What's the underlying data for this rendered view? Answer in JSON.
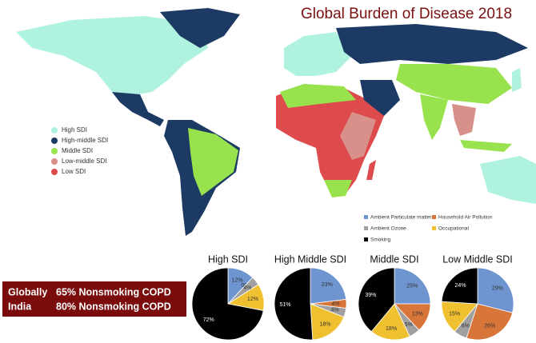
{
  "title": "Global Burden of Disease 2018",
  "map": {
    "legend": [
      {
        "label": "High SDI",
        "color": "#b0f2e0"
      },
      {
        "label": "High-middle SDI",
        "color": "#1c3a64"
      },
      {
        "label": "Middle SDI",
        "color": "#98e24e"
      },
      {
        "label": "Low-middle SDI",
        "color": "#d8908a"
      },
      {
        "label": "Low SDI",
        "color": "#dd4b4d"
      }
    ]
  },
  "legend": {
    "categories": [
      "Ambient Particulate matter",
      "Household Air Pollution",
      "Ambient Ozone",
      "Occupational",
      "Smoking"
    ],
    "colors": [
      "#6e95d0",
      "#d8763a",
      "#a0a0a0",
      "#efc030",
      "#000000"
    ]
  },
  "chart_data": [
    {
      "type": "pie",
      "title": "High SDI",
      "values": [
        12,
        0,
        4,
        12,
        72
      ],
      "value_labels": [
        "12%",
        "0%",
        "4%",
        "12%",
        "72%"
      ]
    },
    {
      "type": "pie",
      "title": "High Middle SDI",
      "values": [
        23,
        4,
        4,
        18,
        51
      ],
      "value_labels": [
        "23%",
        "4%",
        "4%",
        "18%",
        "51%"
      ]
    },
    {
      "type": "pie",
      "title": "Middle SDI",
      "values": [
        25,
        13,
        5,
        18,
        39
      ],
      "value_labels": [
        "25%",
        "13%",
        "5%",
        "18%",
        "39%"
      ]
    },
    {
      "type": "pie",
      "title": "Low Middle SDI",
      "values": [
        29,
        26,
        6,
        15,
        24
      ],
      "value_labels": [
        "29%",
        "26%",
        "6%",
        "15%",
        "24%"
      ]
    }
  ],
  "callout": {
    "rows": [
      [
        "Globally",
        "65% Nonsmoking COPD"
      ],
      [
        "India",
        "80% Nonsmoking COPD"
      ]
    ]
  }
}
